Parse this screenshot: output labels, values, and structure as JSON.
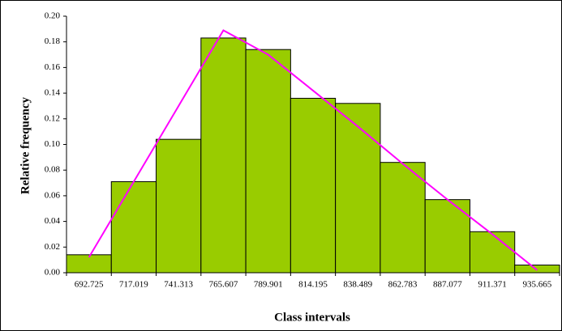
{
  "chart_data": {
    "type": "bar",
    "xlabel": "Class intervals",
    "ylabel": "Relative frequency",
    "categories": [
      "692.725",
      "717.019",
      "741.313",
      "765.607",
      "789.901",
      "814.195",
      "838.489",
      "862.783",
      "887.077",
      "911.371",
      "935.665"
    ],
    "series": [
      {
        "color": "#99cc00",
        "values": [
          0.014,
          0.071,
          0.104,
          0.183,
          0.174,
          0.136,
          0.132,
          0.086,
          0.057,
          0.032,
          0.006
        ]
      },
      {
        "color": "#ff00ff",
        "style": "line",
        "values": [
          0.012,
          0.071,
          0.13,
          0.189,
          0.17,
          0.142,
          0.114,
          0.085,
          0.057,
          0.03,
          0.002
        ]
      }
    ],
    "ylim": [
      0,
      0.2
    ],
    "yticks": [
      {
        "value": 0,
        "label": "0.00"
      },
      {
        "value": 0.02,
        "label": "0.02"
      },
      {
        "value": 0.04,
        "label": "0.04"
      },
      {
        "value": 0.06,
        "label": "0.06"
      },
      {
        "value": 0.08,
        "label": "0.08"
      },
      {
        "value": 0.1,
        "label": "0.10"
      },
      {
        "value": 0.12,
        "label": "0.12"
      },
      {
        "value": 0.14,
        "label": "0.14"
      },
      {
        "value": 0.16,
        "label": "0.16"
      },
      {
        "value": 0.18,
        "label": "0.18"
      },
      {
        "value": 0.2,
        "label": "0.20"
      }
    ],
    "grid": false
  }
}
